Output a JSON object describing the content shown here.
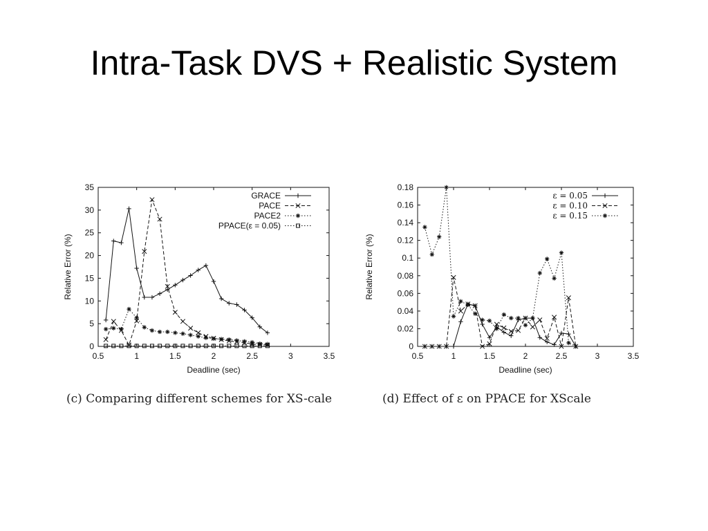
{
  "slide": {
    "title": "Intra-Task DVS + Realistic System"
  },
  "captions": {
    "c": "(c) Comparing different schemes for XS-cale",
    "d": "(d) Effect of ε on PPACE for XScale"
  },
  "chart_data": [
    {
      "type": "line",
      "xlabel": "Deadline (sec)",
      "ylabel": "Relative Error (%)",
      "xlim": [
        0.5,
        3.5
      ],
      "ylim": [
        0,
        35
      ],
      "xticks": [
        0.5,
        1,
        1.5,
        2,
        2.5,
        3,
        3.5
      ],
      "yticks": [
        0,
        5,
        10,
        15,
        20,
        25,
        30,
        35
      ],
      "xtick_labels": [
        "0.5",
        "1",
        "1.5",
        "2",
        "2.5",
        "3",
        "3.5"
      ],
      "ytick_labels": [
        "0",
        "5",
        "10",
        "15",
        "20",
        "25",
        "30",
        "35"
      ],
      "legend_position": "top-right",
      "grid": false,
      "x": [
        0.6,
        0.7,
        0.8,
        0.9,
        1.0,
        1.1,
        1.2,
        1.3,
        1.4,
        1.5,
        1.6,
        1.7,
        1.8,
        1.9,
        2.0,
        2.1,
        2.2,
        2.3,
        2.4,
        2.5,
        2.6,
        2.7,
        2.8,
        2.9,
        3.0,
        3.1,
        3.2,
        3.3
      ],
      "series": [
        {
          "name": "GRACE",
          "style": "solid",
          "marker": "+",
          "values": [
            5.8,
            23.2,
            22.8,
            30.3,
            17.2,
            10.8,
            10.8,
            11.6,
            12.5,
            13.5,
            14.6,
            15.6,
            16.8,
            17.8,
            14.3,
            10.5,
            9.5,
            9.2,
            8.0,
            6.3,
            4.3,
            3.0,
            null,
            null,
            null,
            null,
            null,
            null
          ]
        },
        {
          "name": "PACE",
          "style": "dashed",
          "marker": "x",
          "values": [
            1.5,
            5.5,
            3.5,
            0.3,
            5.6,
            20.9,
            32.3,
            28.0,
            13.2,
            7.5,
            5.5,
            4.0,
            3.0,
            2.2,
            1.8,
            1.5,
            1.2,
            1.0,
            0.8,
            0.5,
            0.4,
            0.3,
            null,
            null,
            null,
            null,
            null,
            null
          ]
        },
        {
          "name": "PACE2",
          "style": "dotted",
          "marker": "*",
          "values": [
            3.8,
            4.0,
            3.8,
            8.2,
            6.3,
            4.2,
            3.5,
            3.2,
            3.2,
            3.0,
            2.8,
            2.5,
            2.2,
            1.9,
            1.7,
            1.6,
            1.5,
            1.3,
            1.1,
            0.9,
            0.6,
            0.5,
            null,
            null,
            null,
            null,
            null,
            null
          ]
        },
        {
          "name": "PPACE(ε = 0.05)",
          "style": "dotted",
          "marker": "square",
          "values": [
            0.1,
            0.1,
            0.1,
            0.1,
            0.1,
            0.1,
            0.1,
            0.1,
            0.1,
            0.1,
            0.1,
            0.1,
            0.1,
            0.1,
            0.1,
            0.1,
            0.1,
            0.1,
            0.1,
            0.1,
            0.1,
            0.1,
            null,
            null,
            null,
            null,
            null,
            null
          ]
        }
      ]
    },
    {
      "type": "line",
      "xlabel": "Deadline (sec)",
      "ylabel": "Relative Error (%)",
      "xlim": [
        0.5,
        3.5
      ],
      "ylim": [
        0,
        0.18
      ],
      "xticks": [
        0.5,
        1,
        1.5,
        2,
        2.5,
        3,
        3.5
      ],
      "yticks": [
        0,
        0.02,
        0.04,
        0.06,
        0.08,
        0.1,
        0.12,
        0.14,
        0.16,
        0.18
      ],
      "xtick_labels": [
        "0.5",
        "1",
        "1.5",
        "2",
        "2.5",
        "3",
        "3.5"
      ],
      "ytick_labels": [
        "0",
        "0.02",
        "0.04",
        "0.06",
        "0.08",
        "0.1",
        "0.12",
        "0.14",
        "0.16",
        "0.18"
      ],
      "legend_position": "top-right",
      "grid": false,
      "x": [
        0.6,
        0.7,
        0.8,
        0.9,
        1.0,
        1.1,
        1.2,
        1.3,
        1.4,
        1.5,
        1.6,
        1.7,
        1.8,
        1.9,
        2.0,
        2.1,
        2.2,
        2.3,
        2.4,
        2.5,
        2.6,
        2.7,
        2.8,
        2.9,
        3.0,
        3.1,
        3.2,
        3.3
      ],
      "series": [
        {
          "name": "ε = 0.05",
          "style": "solid",
          "marker": "+",
          "values": [
            0,
            0,
            0,
            0,
            0,
            0.028,
            0.048,
            0.046,
            0.025,
            0.01,
            0.022,
            0.016,
            0.012,
            0.03,
            0.032,
            0.032,
            0.01,
            0.005,
            0.002,
            0.015,
            0.014,
            0,
            null,
            null,
            null,
            null,
            null,
            null
          ]
        },
        {
          "name": "ε = 0.10",
          "style": "dashed",
          "marker": "x",
          "values": [
            0,
            0,
            0,
            0,
            0.078,
            0.04,
            0.048,
            0.046,
            0,
            0.003,
            0.025,
            0.021,
            0.017,
            0.018,
            0.032,
            0.022,
            0.03,
            0.009,
            0.033,
            0,
            0.055,
            0,
            null,
            null,
            null,
            null,
            null,
            null
          ]
        },
        {
          "name": "ε = 0.15",
          "style": "dotted",
          "marker": "*",
          "values": [
            0.135,
            0.104,
            0.124,
            0.18,
            0.034,
            0.051,
            0.047,
            0.037,
            0.03,
            0.029,
            0.02,
            0.036,
            0.032,
            0.032,
            0.024,
            0.032,
            0.083,
            0.099,
            0.077,
            0.106,
            0.004,
            0,
            null,
            null,
            null,
            null,
            null,
            null
          ]
        }
      ]
    }
  ]
}
